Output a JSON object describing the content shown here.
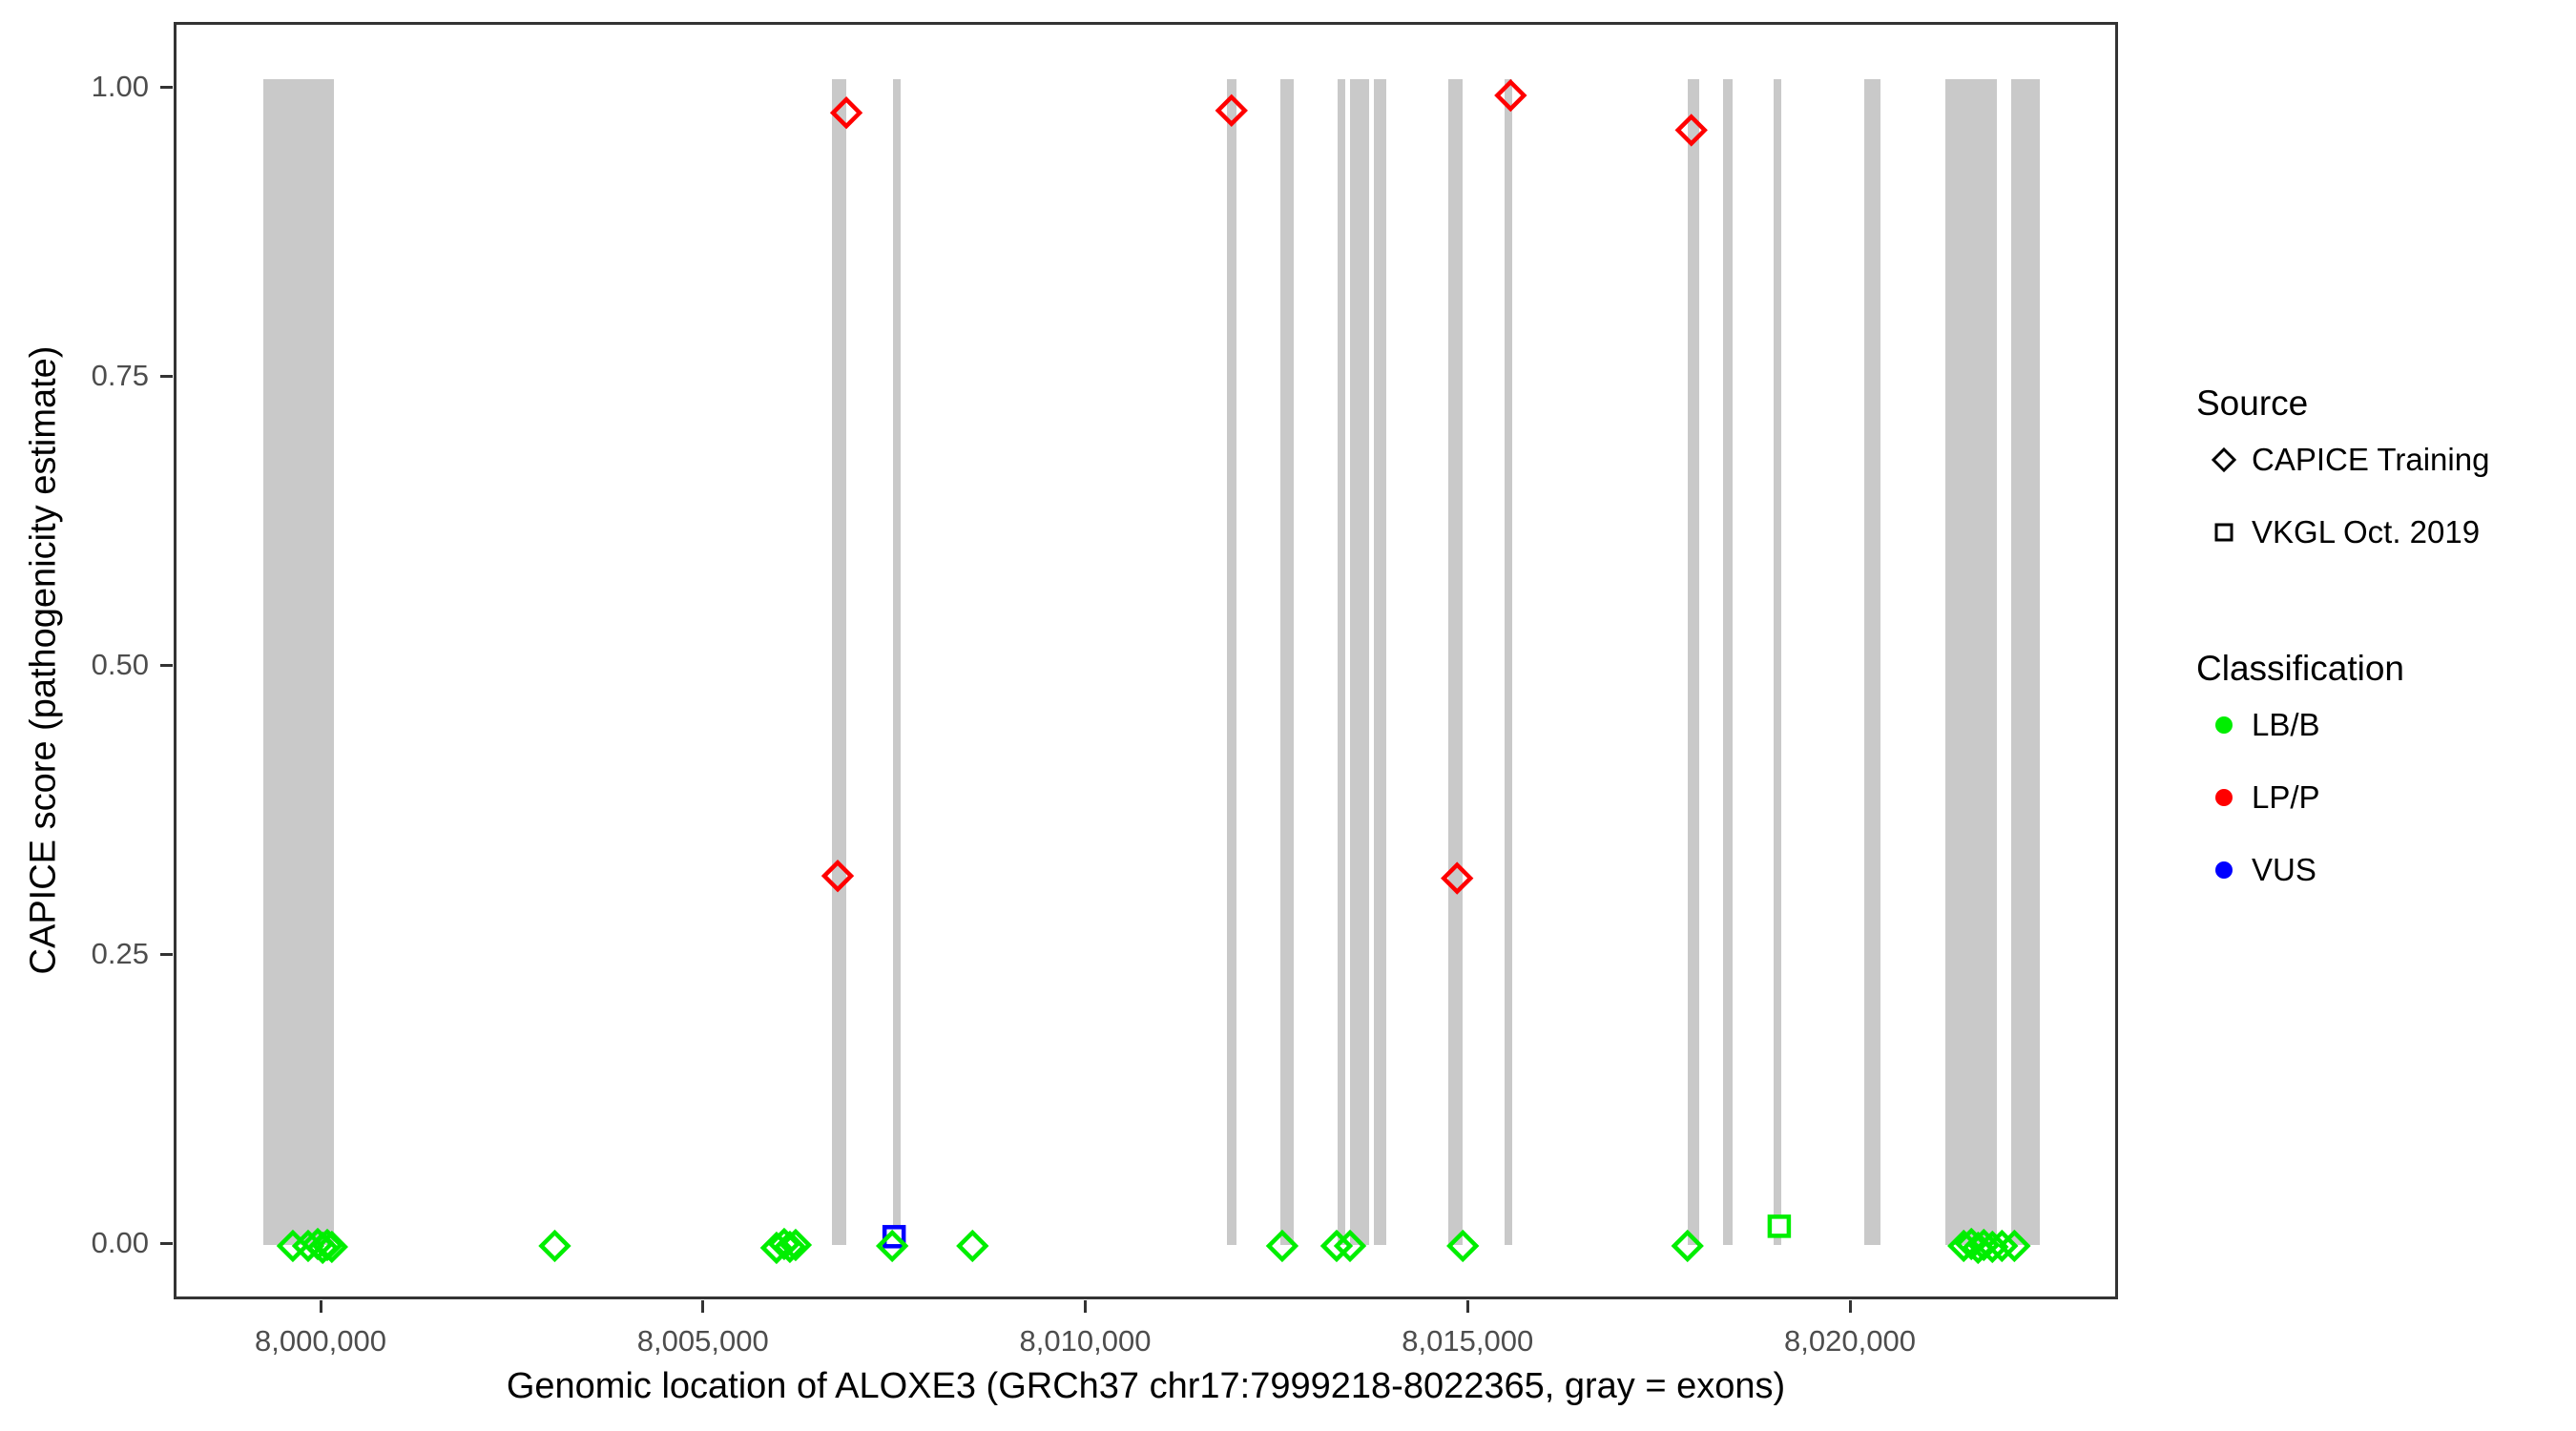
{
  "chart_data": {
    "type": "scatter",
    "title": "",
    "xlabel": "Genomic location of ALOXE3 (GRCh37 chr17:7999218-8022365, gray = exons)",
    "ylabel": "CAPICE score (pathogenicity estimate)",
    "xlim": [
      7998079,
      8023507
    ],
    "ylim": [
      -0.049,
      1.056
    ],
    "grid": "off",
    "x_ticks": [
      {
        "value": 8000000,
        "label": "8,000,000"
      },
      {
        "value": 8005000,
        "label": "8,005,000"
      },
      {
        "value": 8010000,
        "label": "8,010,000"
      },
      {
        "value": 8015000,
        "label": "8,015,000"
      },
      {
        "value": 8020000,
        "label": "8,020,000"
      }
    ],
    "y_ticks": [
      {
        "value": 0.0,
        "label": "0.00"
      },
      {
        "value": 0.25,
        "label": "0.25"
      },
      {
        "value": 0.5,
        "label": "0.50"
      },
      {
        "value": 0.75,
        "label": "0.75"
      },
      {
        "value": 1.0,
        "label": "1.00"
      }
    ],
    "exons_note": "gray vertical bars = exons, genomic start/end (GRCh37 chr17)",
    "exons": [
      {
        "start": 7999213,
        "end": 8000138
      },
      {
        "start": 8006650,
        "end": 8006838
      },
      {
        "start": 8007450,
        "end": 8007550
      },
      {
        "start": 8011813,
        "end": 8011938
      },
      {
        "start": 8012513,
        "end": 8012688
      },
      {
        "start": 8013263,
        "end": 8013363
      },
      {
        "start": 8013425,
        "end": 8013675
      },
      {
        "start": 8013738,
        "end": 8013900
      },
      {
        "start": 8014713,
        "end": 8014900
      },
      {
        "start": 8015450,
        "end": 8015550
      },
      {
        "start": 8017838,
        "end": 8017988
      },
      {
        "start": 8018300,
        "end": 8018425
      },
      {
        "start": 8018963,
        "end": 8019063
      },
      {
        "start": 8020150,
        "end": 8020363
      },
      {
        "start": 8021213,
        "end": 8021888
      },
      {
        "start": 8022075,
        "end": 8022450
      }
    ],
    "series": [
      {
        "name": "VKGL Oct. 2019 / VUS",
        "source": "VKGL Oct. 2019",
        "classification": "VUS",
        "marker": "square",
        "color": "#0000FF",
        "points": [
          {
            "pos": 8007463,
            "score": 0.008
          }
        ]
      },
      {
        "name": "VKGL Oct. 2019 / LB/B",
        "source": "VKGL Oct. 2019",
        "classification": "LB/B",
        "marker": "square",
        "color": "#00EE00",
        "points": [
          {
            "pos": 8019038,
            "score": 0.017
          }
        ]
      },
      {
        "name": "CAPICE Training / LB/B",
        "source": "CAPICE Training",
        "classification": "LB/B",
        "marker": "diamond",
        "color": "#00EE00",
        "points": [
          {
            "pos": 7999600,
            "score": 0.0
          },
          {
            "pos": 7999800,
            "score": 0.0
          },
          {
            "pos": 7999925,
            "score": 0.0,
            "dy": -2
          },
          {
            "pos": 7999990,
            "score": 0.0,
            "dy": 2
          },
          {
            "pos": 8000050,
            "score": 0.0,
            "dy": -1
          },
          {
            "pos": 8000110,
            "score": 0.0,
            "dy": 1
          },
          {
            "pos": 8003025,
            "score": 0.0
          },
          {
            "pos": 8005925,
            "score": 0.0,
            "dy": 2
          },
          {
            "pos": 8006025,
            "score": 0.0,
            "dy": -2
          },
          {
            "pos": 8006100,
            "score": 0.0,
            "dy": 1
          },
          {
            "pos": 8006175,
            "score": 0.0,
            "dy": -1
          },
          {
            "pos": 8007438,
            "score": 0.0
          },
          {
            "pos": 8008488,
            "score": 0.0
          },
          {
            "pos": 8012538,
            "score": 0.0
          },
          {
            "pos": 8013250,
            "score": 0.0
          },
          {
            "pos": 8013425,
            "score": 0.0
          },
          {
            "pos": 8014900,
            "score": 0.0
          },
          {
            "pos": 8017838,
            "score": 0.0
          },
          {
            "pos": 8021450,
            "score": 0.0
          },
          {
            "pos": 8021550,
            "score": 0.0,
            "dy": -2
          },
          {
            "pos": 8021638,
            "score": 0.0,
            "dy": 2
          },
          {
            "pos": 8021713,
            "score": 0.0,
            "dy": -1
          },
          {
            "pos": 8021825,
            "score": 0.0,
            "dy": 1
          },
          {
            "pos": 8021950,
            "score": 0.0
          },
          {
            "pos": 8022113,
            "score": 0.0
          }
        ]
      },
      {
        "name": "CAPICE Training / LP/P",
        "source": "CAPICE Training",
        "classification": "LP/P",
        "marker": "diamond",
        "color": "#FF0000",
        "points": [
          {
            "pos": 8006725,
            "score": 0.32
          },
          {
            "pos": 8006838,
            "score": 0.98
          },
          {
            "pos": 8011875,
            "score": 0.982
          },
          {
            "pos": 8014825,
            "score": 0.318
          },
          {
            "pos": 8015525,
            "score": 0.995
          },
          {
            "pos": 8017888,
            "score": 0.965
          }
        ]
      }
    ]
  },
  "legend": {
    "source": {
      "title": "Source",
      "items": [
        {
          "label": "CAPICE Training",
          "marker": "diamond"
        },
        {
          "label": "VKGL Oct. 2019",
          "marker": "square"
        }
      ]
    },
    "classification": {
      "title": "Classification",
      "items": [
        {
          "label": "LB/B",
          "color": "#00EE00"
        },
        {
          "label": "LP/P",
          "color": "#FF0000"
        },
        {
          "label": "VUS",
          "color": "#0000FF"
        }
      ]
    }
  },
  "colors": {
    "exon_gray": "#C9C9C9",
    "panel_border": "#333333",
    "tick_label": "#4d4d4d"
  }
}
